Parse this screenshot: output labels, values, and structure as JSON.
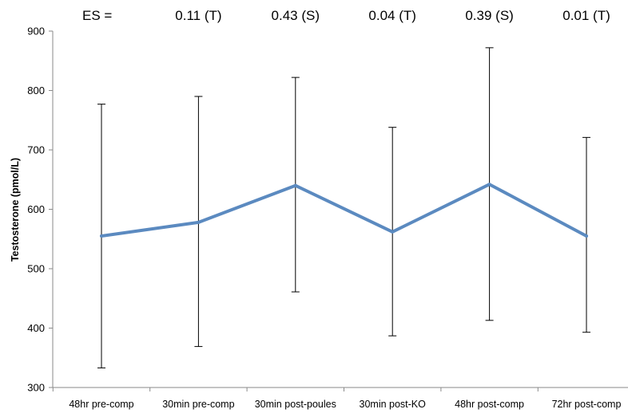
{
  "chart_data": {
    "type": "line",
    "title": "",
    "xlabel": "",
    "ylabel": "Testosterone (pmol/L)",
    "ylim": [
      300,
      900
    ],
    "yticks": [
      300,
      400,
      500,
      600,
      700,
      800,
      900
    ],
    "grid": false,
    "categories": [
      "48hr pre-comp",
      "30min pre-comp",
      "30min post-poules",
      "30min post-KO",
      "48hr post-comp",
      "72hr post-comp"
    ],
    "series": [
      {
        "values": [
          555,
          578,
          640,
          562,
          642,
          555
        ],
        "error_upper": [
          777,
          790,
          822,
          738,
          872,
          721
        ],
        "error_lower": [
          333,
          369,
          461,
          387,
          413,
          393
        ],
        "color": "#5b8ac0"
      }
    ],
    "effect_size_prefix": "ES =",
    "effect_sizes": [
      "0.11 (T)",
      "0.43 (S)",
      "0.04 (T)",
      "0.39 (S)",
      "0.01 (T)"
    ]
  }
}
